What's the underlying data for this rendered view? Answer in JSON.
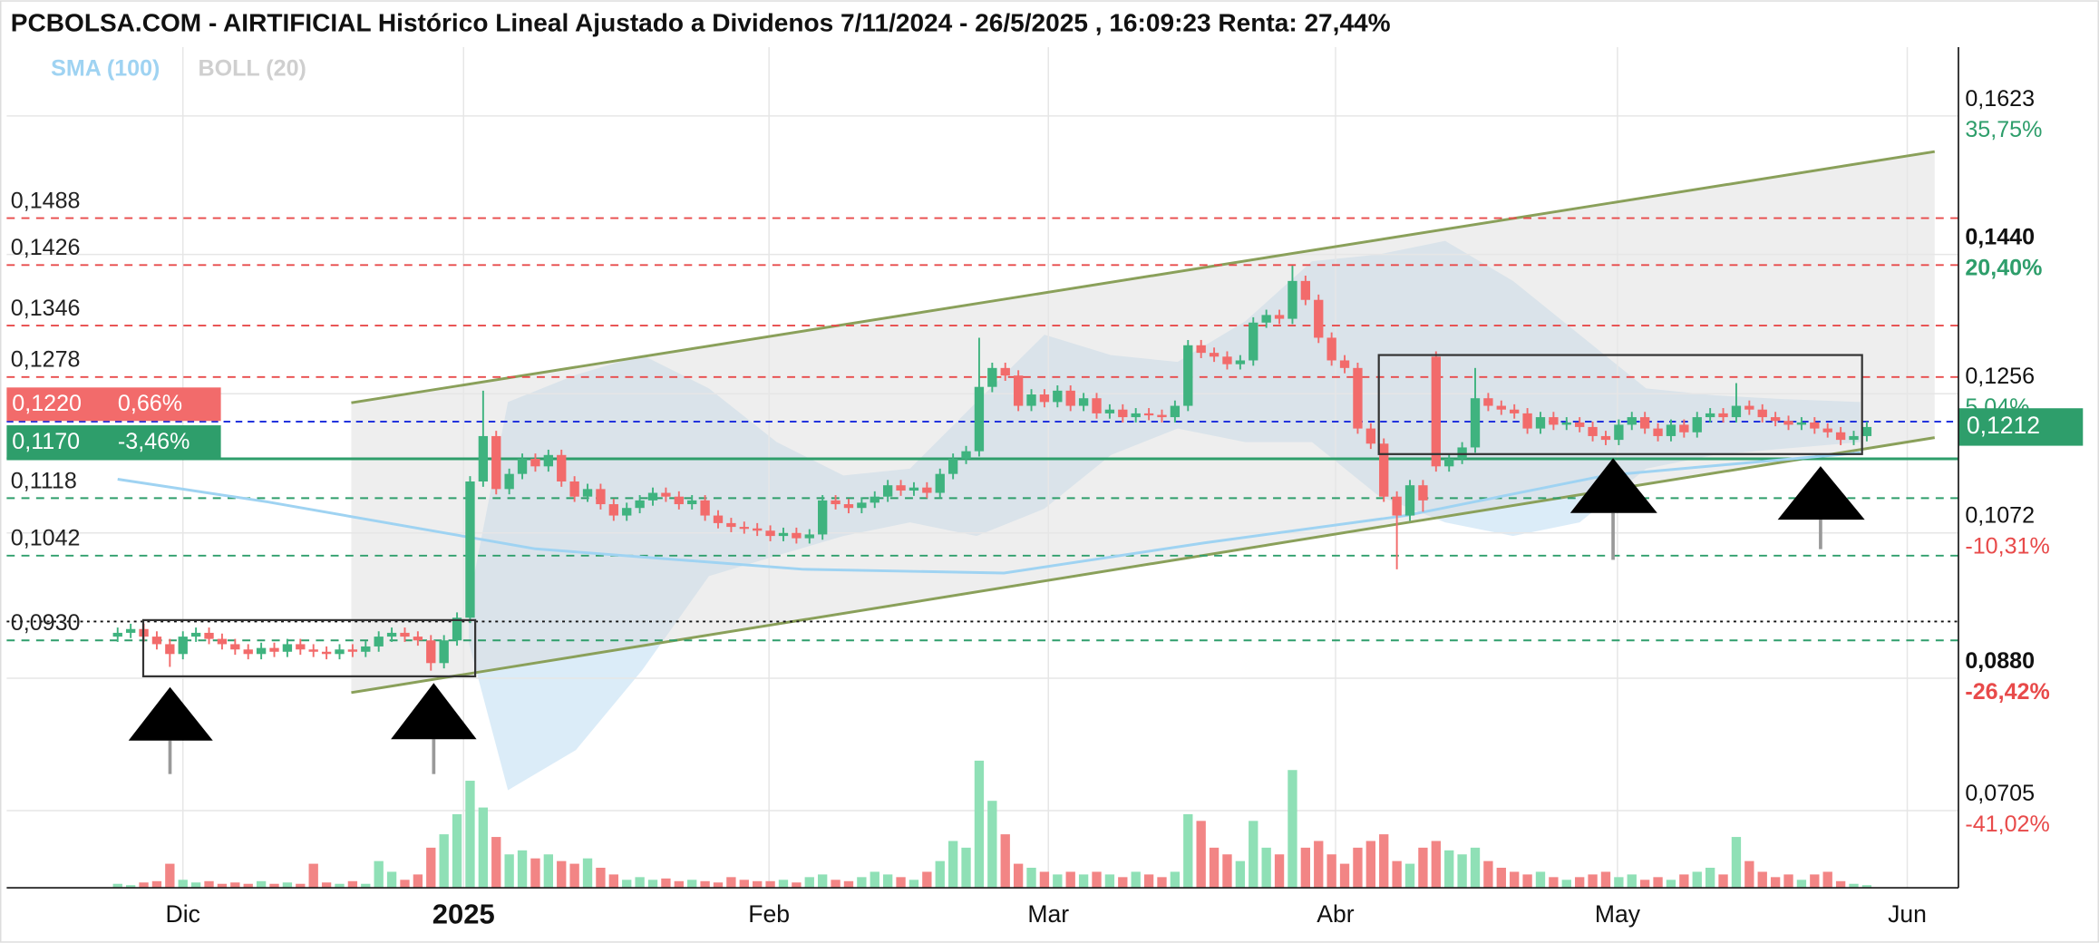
{
  "chart_data": {
    "type": "candlestick",
    "title": "PCBOLSA.COM - AIRTIFICIAL Histórico Lineal Ajustado a Dividenos 7/11/2024 - 26/5/2025 , 16:09:23 Renta: 27,44%",
    "up_color": "#3fb37f",
    "down_color": "#f26b6b",
    "grid": true,
    "xlim": [
      -8.5,
      140.2
    ],
    "ylim": [
      0.0603,
      0.1714
    ],
    "xticks": [
      {
        "value": 5,
        "label": "Dic"
      },
      {
        "value": 26.5,
        "label": "2025"
      },
      {
        "value": 49.9,
        "label": "Feb"
      },
      {
        "value": 71.3,
        "label": "Mar"
      },
      {
        "value": 93.3,
        "label": "Abr"
      },
      {
        "value": 114.9,
        "label": "May"
      },
      {
        "value": 137.1,
        "label": "Jun"
      }
    ],
    "yticks": [
      {
        "value": 0.1623,
        "label": "0,1623"
      },
      {
        "value": 0.144,
        "label": "0,1440"
      },
      {
        "value": 0.1256,
        "label": "0,1256"
      },
      {
        "value": 0.1072,
        "label": "0,1072"
      },
      {
        "value": 0.088,
        "label": "0,0880"
      },
      {
        "value": 0.0705,
        "label": "0,0705"
      }
    ],
    "ytick_pct": [
      "35,75%",
      "20,40%",
      "5,04%",
      "-10,31%",
      "-26,42%",
      "-41,02%"
    ],
    "last_price": {
      "value": 0.1212,
      "label": "0,1212",
      "color": "#2e9e6b"
    },
    "reference_line": 0.0955,
    "levels": [
      {
        "value": 0.1488,
        "label": "0,1488",
        "color": "#e84a4a"
      },
      {
        "value": 0.1426,
        "label": "0,1426",
        "color": "#e84a4a"
      },
      {
        "value": 0.1346,
        "label": "0,1346",
        "color": "#e84a4a"
      },
      {
        "value": 0.1278,
        "label": "0,1278",
        "color": "#e84a4a"
      },
      {
        "value": 0.1118,
        "label": "0,1118",
        "color": "#2e9e6b"
      },
      {
        "value": 0.1042,
        "label": "0,1042",
        "color": "#2e9e6b"
      },
      {
        "value": 0.093,
        "label": "0,0930",
        "color": "#2e9e6b"
      }
    ],
    "badges": [
      {
        "value": 0.122,
        "label": "0,1220",
        "pct": "0,66%",
        "color": "#f26b6b"
      },
      {
        "value": 0.117,
        "label": "0,1170",
        "pct": "-3,46%",
        "color": "#2e9e6b"
      }
    ],
    "sma": {
      "name": "SMA (100)",
      "color": "#9fd3f2",
      "x": [
        0,
        11.5,
        32,
        52.5,
        67.9,
        83.3,
        98.7,
        114,
        133.5
      ],
      "values": [
        0.1143,
        0.1113,
        0.1051,
        0.1024,
        0.1019,
        0.1059,
        0.1095,
        0.1148,
        0.1178
      ]
    },
    "bollinger": {
      "name": "BOLL (20)",
      "color": "#cfcfcf",
      "x": [
        26.9,
        29.9,
        35.1,
        40.2,
        45.3,
        50.5,
        55.6,
        60.7,
        65.8,
        71.0,
        76.1,
        81.2,
        86.4,
        91.5,
        96.6,
        101.7,
        106.9,
        112.0,
        117.1,
        122.3,
        127.4,
        133.5
      ],
      "upper": [
        0.098,
        0.1245,
        0.1281,
        0.1307,
        0.1263,
        0.1192,
        0.1148,
        0.1157,
        0.1245,
        0.1334,
        0.1307,
        0.1298,
        0.1352,
        0.1431,
        0.144,
        0.1458,
        0.1405,
        0.1334,
        0.1263,
        0.1254,
        0.1249,
        0.1245
      ],
      "lower": [
        0.0927,
        0.0732,
        0.0785,
        0.0891,
        0.1015,
        0.1042,
        0.1068,
        0.1086,
        0.1068,
        0.1104,
        0.1175,
        0.121,
        0.1192,
        0.1192,
        0.1121,
        0.1086,
        0.1068,
        0.1086,
        0.1157,
        0.1175,
        0.1183,
        0.1192
      ]
    },
    "channel": {
      "color": "#8aa05a",
      "x": [
        17.9,
        139.2
      ],
      "upper": [
        0.1244,
        0.1576
      ],
      "lower": [
        0.0861,
        0.1198
      ]
    },
    "ohlc": [
      [
        0.0935,
        0.0947,
        0.0928,
        0.094
      ],
      [
        0.094,
        0.0952,
        0.0933,
        0.0945
      ],
      [
        0.0945,
        0.0952,
        0.0928,
        0.0935
      ],
      [
        0.0935,
        0.0942,
        0.0918,
        0.0925
      ],
      [
        0.0925,
        0.0932,
        0.0895,
        0.0912
      ],
      [
        0.0912,
        0.0942,
        0.0905,
        0.0935
      ],
      [
        0.0935,
        0.0947,
        0.0928,
        0.094
      ],
      [
        0.094,
        0.0947,
        0.0925,
        0.0932
      ],
      [
        0.0932,
        0.0939,
        0.0918,
        0.0925
      ],
      [
        0.0925,
        0.0932,
        0.0911,
        0.0918
      ],
      [
        0.0918,
        0.0925,
        0.0905,
        0.0912
      ],
      [
        0.0912,
        0.0927,
        0.0905,
        0.092
      ],
      [
        0.092,
        0.0927,
        0.0908,
        0.0915
      ],
      [
        0.0915,
        0.0932,
        0.0908,
        0.0925
      ],
      [
        0.0925,
        0.0932,
        0.0911,
        0.0918
      ],
      [
        0.0918,
        0.0925,
        0.0908,
        0.0915
      ],
      [
        0.0915,
        0.0922,
        0.0905,
        0.0912
      ],
      [
        0.0912,
        0.0925,
        0.0905,
        0.0918
      ],
      [
        0.0918,
        0.0925,
        0.0908,
        0.0915
      ],
      [
        0.0915,
        0.0929,
        0.0908,
        0.0922
      ],
      [
        0.0922,
        0.0942,
        0.0915,
        0.0935
      ],
      [
        0.0935,
        0.0947,
        0.0928,
        0.094
      ],
      [
        0.094,
        0.0947,
        0.0928,
        0.0935
      ],
      [
        0.0935,
        0.0942,
        0.0923,
        0.093
      ],
      [
        0.093,
        0.0937,
        0.089,
        0.09
      ],
      [
        0.09,
        0.0937,
        0.0893,
        0.093
      ],
      [
        0.093,
        0.0967,
        0.0923,
        0.096
      ],
      [
        0.096,
        0.1147,
        0.0953,
        0.114
      ],
      [
        0.114,
        0.126,
        0.1133,
        0.12
      ],
      [
        0.12,
        0.1207,
        0.1123,
        0.113
      ],
      [
        0.113,
        0.1157,
        0.1123,
        0.115
      ],
      [
        0.115,
        0.1177,
        0.1143,
        0.117
      ],
      [
        0.117,
        0.1177,
        0.1153,
        0.116
      ],
      [
        0.116,
        0.1182,
        0.1153,
        0.1175
      ],
      [
        0.1175,
        0.1182,
        0.1133,
        0.114
      ],
      [
        0.114,
        0.1147,
        0.1113,
        0.112
      ],
      [
        0.112,
        0.1137,
        0.1113,
        0.113
      ],
      [
        0.113,
        0.1137,
        0.1103,
        0.111
      ],
      [
        0.111,
        0.1117,
        0.1088,
        0.1095
      ],
      [
        0.1095,
        0.1112,
        0.1088,
        0.1105
      ],
      [
        0.1105,
        0.1122,
        0.1098,
        0.1115
      ],
      [
        0.1115,
        0.1132,
        0.1108,
        0.1125
      ],
      [
        0.1125,
        0.1132,
        0.1113,
        0.112
      ],
      [
        0.112,
        0.1127,
        0.1103,
        0.111
      ],
      [
        0.111,
        0.1122,
        0.1103,
        0.1115
      ],
      [
        0.1115,
        0.1122,
        0.1088,
        0.1095
      ],
      [
        0.1095,
        0.1102,
        0.1078,
        0.1085
      ],
      [
        0.1085,
        0.1092,
        0.1073,
        0.108
      ],
      [
        0.108,
        0.1087,
        0.1071,
        0.1078
      ],
      [
        0.1078,
        0.1085,
        0.1068,
        0.1075
      ],
      [
        0.1075,
        0.1082,
        0.1061,
        0.1068
      ],
      [
        0.1068,
        0.1079,
        0.1061,
        0.1072
      ],
      [
        0.1072,
        0.1079,
        0.1058,
        0.1065
      ],
      [
        0.1065,
        0.1077,
        0.1058,
        0.107
      ],
      [
        0.107,
        0.1122,
        0.1063,
        0.1115
      ],
      [
        0.1115,
        0.1122,
        0.1103,
        0.111
      ],
      [
        0.111,
        0.1117,
        0.1098,
        0.1105
      ],
      [
        0.1105,
        0.1119,
        0.1098,
        0.1112
      ],
      [
        0.1112,
        0.1127,
        0.1105,
        0.112
      ],
      [
        0.112,
        0.1142,
        0.1113,
        0.1135
      ],
      [
        0.1135,
        0.1142,
        0.1121,
        0.1128
      ],
      [
        0.1128,
        0.1139,
        0.1121,
        0.1132
      ],
      [
        0.1132,
        0.1139,
        0.1118,
        0.1125
      ],
      [
        0.1125,
        0.1157,
        0.1118,
        0.115
      ],
      [
        0.115,
        0.1177,
        0.1143,
        0.117
      ],
      [
        0.117,
        0.1187,
        0.1163,
        0.118
      ],
      [
        0.118,
        0.133,
        0.1173,
        0.1265
      ],
      [
        0.1265,
        0.1297,
        0.1258,
        0.129
      ],
      [
        0.129,
        0.1297,
        0.1273,
        0.128
      ],
      [
        0.128,
        0.1287,
        0.1233,
        0.124
      ],
      [
        0.124,
        0.1262,
        0.1233,
        0.1255
      ],
      [
        0.1255,
        0.1262,
        0.1238,
        0.1245
      ],
      [
        0.1245,
        0.1267,
        0.1238,
        0.126
      ],
      [
        0.126,
        0.1267,
        0.1233,
        0.124
      ],
      [
        0.124,
        0.1257,
        0.1233,
        0.125
      ],
      [
        0.125,
        0.1257,
        0.1223,
        0.123
      ],
      [
        0.123,
        0.1242,
        0.1223,
        0.1235
      ],
      [
        0.1235,
        0.1242,
        0.1218,
        0.1225
      ],
      [
        0.1225,
        0.1237,
        0.1218,
        0.123
      ],
      [
        0.123,
        0.1237,
        0.1221,
        0.1228
      ],
      [
        0.1228,
        0.1235,
        0.1218,
        0.1225
      ],
      [
        0.1225,
        0.1247,
        0.1218,
        0.124
      ],
      [
        0.124,
        0.1327,
        0.1233,
        0.132
      ],
      [
        0.132,
        0.1327,
        0.1303,
        0.131
      ],
      [
        0.131,
        0.1317,
        0.1298,
        0.1305
      ],
      [
        0.1305,
        0.1312,
        0.1288,
        0.1295
      ],
      [
        0.1295,
        0.1307,
        0.1288,
        0.13
      ],
      [
        0.13,
        0.1357,
        0.1293,
        0.135
      ],
      [
        0.135,
        0.1367,
        0.1343,
        0.136
      ],
      [
        0.136,
        0.1367,
        0.1348,
        0.1355
      ],
      [
        0.1355,
        0.1425,
        0.1348,
        0.1405
      ],
      [
        0.1405,
        0.1412,
        0.1373,
        0.138
      ],
      [
        0.138,
        0.1387,
        0.1323,
        0.133
      ],
      [
        0.133,
        0.1337,
        0.1293,
        0.13
      ],
      [
        0.13,
        0.1307,
        0.1283,
        0.129
      ],
      [
        0.129,
        0.1297,
        0.1203,
        0.121
      ],
      [
        0.121,
        0.1217,
        0.1183,
        0.119
      ],
      [
        0.119,
        0.1197,
        0.1113,
        0.112
      ],
      [
        0.112,
        0.1127,
        0.1024,
        0.1095
      ],
      [
        0.1095,
        0.1142,
        0.1088,
        0.1135
      ],
      [
        0.1135,
        0.1142,
        0.11,
        0.1115
      ],
      [
        0.1305,
        0.1312,
        0.1153,
        0.116
      ],
      [
        0.116,
        0.1177,
        0.1153,
        0.117
      ],
      [
        0.117,
        0.1192,
        0.1163,
        0.1185
      ],
      [
        0.1185,
        0.129,
        0.1178,
        0.125
      ],
      [
        0.125,
        0.1257,
        0.1233,
        0.124
      ],
      [
        0.124,
        0.1247,
        0.1228,
        0.1235
      ],
      [
        0.1235,
        0.1242,
        0.1223,
        0.123
      ],
      [
        0.123,
        0.1237,
        0.1203,
        0.121
      ],
      [
        0.121,
        0.1232,
        0.1203,
        0.1225
      ],
      [
        0.1225,
        0.1232,
        0.1208,
        0.1215
      ],
      [
        0.1215,
        0.1225,
        0.1208,
        0.1218
      ],
      [
        0.1218,
        0.1225,
        0.1205,
        0.1212
      ],
      [
        0.1212,
        0.1219,
        0.1193,
        0.12
      ],
      [
        0.12,
        0.1207,
        0.1188,
        0.1195
      ],
      [
        0.1195,
        0.1222,
        0.1188,
        0.1215
      ],
      [
        0.1215,
        0.1232,
        0.1208,
        0.1225
      ],
      [
        0.1225,
        0.1232,
        0.1203,
        0.121
      ],
      [
        0.121,
        0.1217,
        0.1193,
        0.12
      ],
      [
        0.12,
        0.1222,
        0.1193,
        0.1215
      ],
      [
        0.1215,
        0.1222,
        0.1198,
        0.1205
      ],
      [
        0.1205,
        0.1232,
        0.1198,
        0.1225
      ],
      [
        0.1225,
        0.1237,
        0.1218,
        0.123
      ],
      [
        0.123,
        0.1237,
        0.1218,
        0.1225
      ],
      [
        0.1225,
        0.127,
        0.1218,
        0.124
      ],
      [
        0.124,
        0.1247,
        0.1228,
        0.1235
      ],
      [
        0.1235,
        0.1242,
        0.1218,
        0.1225
      ],
      [
        0.1225,
        0.1232,
        0.1213,
        0.122
      ],
      [
        0.122,
        0.1227,
        0.1208,
        0.1215
      ],
      [
        0.1215,
        0.1225,
        0.1208,
        0.1218
      ],
      [
        0.1218,
        0.1225,
        0.1203,
        0.121
      ],
      [
        0.121,
        0.1217,
        0.1198,
        0.1205
      ],
      [
        0.1205,
        0.1212,
        0.1188,
        0.1195
      ],
      [
        0.1195,
        0.1207,
        0.1188,
        0.12
      ],
      [
        0.12,
        0.1219,
        0.1193,
        0.1212
      ]
    ],
    "volume_lim": [
      0,
      100
    ],
    "volume": [
      3,
      2,
      4,
      5,
      18,
      6,
      4,
      5,
      3,
      4,
      3,
      5,
      3,
      4,
      3,
      18,
      4,
      3,
      5,
      3,
      20,
      12,
      6,
      10,
      30,
      40,
      55,
      80,
      60,
      38,
      25,
      28,
      22,
      25,
      20,
      18,
      22,
      15,
      10,
      6,
      8,
      6,
      7,
      5,
      6,
      5,
      4,
      8,
      6,
      5,
      5,
      6,
      4,
      8,
      10,
      6,
      5,
      8,
      12,
      10,
      8,
      6,
      12,
      20,
      35,
      30,
      95,
      65,
      40,
      18,
      15,
      12,
      10,
      12,
      10,
      12,
      10,
      8,
      12,
      10,
      8,
      12,
      55,
      50,
      30,
      25,
      20,
      50,
      30,
      25,
      88,
      30,
      35,
      25,
      18,
      30,
      35,
      40,
      20,
      18,
      30,
      35,
      28,
      25,
      30,
      20,
      15,
      12,
      10,
      12,
      8,
      6,
      8,
      10,
      12,
      8,
      10,
      6,
      8,
      6,
      10,
      12,
      15,
      10,
      38,
      20,
      12,
      8,
      10,
      6,
      10,
      12,
      5,
      3,
      2
    ]
  }
}
